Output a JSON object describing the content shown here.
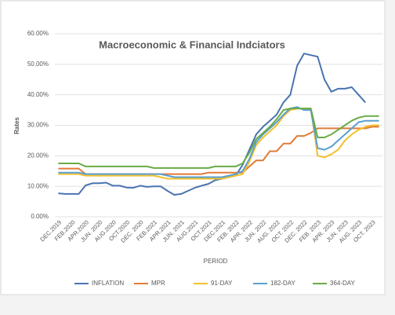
{
  "chart_data": {
    "type": "line",
    "title": "Macroeconomic & Financial Indciators",
    "y_label": "Rates",
    "x_label": "PERIOD",
    "categories": [
      "DEC.2019",
      null,
      "FEB.2020",
      null,
      "APR.2020",
      null,
      "JUN. 2020",
      null,
      "AUG.2020",
      null,
      "OCT.2020",
      null,
      "DEC. 2020",
      null,
      "FEB.2021",
      null,
      "APR.2021",
      null,
      "JUN. 2021",
      null,
      "AUG.2021",
      null,
      "OCT.2021",
      null,
      "DEC.2021",
      null,
      "FEB. 2022",
      null,
      "APR. 2022",
      null,
      "JUN. 2022",
      null,
      "AUG. 2022",
      null,
      "OCT. 2022",
      null,
      "DEC. 2022",
      null,
      "FEB. 2023",
      null,
      "APR. 2023",
      null,
      "JUN. 2023",
      null,
      "AUG. 2023",
      null,
      "OCT. 2023",
      null
    ],
    "series": [
      {
        "name": "INFLATION",
        "color": "#4a74b0",
        "values": [
          7.7,
          7.5,
          7.5,
          7.5,
          10.3,
          11,
          11,
          11.2,
          10.2,
          10.2,
          9.6,
          9.5,
          10.2,
          9.8,
          10,
          10,
          8.5,
          7.2,
          7.5,
          8.5,
          9.5,
          10.2,
          10.8,
          12,
          12.5,
          13,
          13.5,
          17,
          22,
          27,
          29.5,
          31.5,
          33.5,
          37.5,
          40,
          49.5,
          53.5,
          53,
          52.5,
          45,
          41,
          42,
          42,
          42.5,
          40,
          37.5,
          null,
          null
        ]
      },
      {
        "name": "MPR",
        "color": "#e07b39",
        "values": [
          15.8,
          15.8,
          15.8,
          15.8,
          14,
          14,
          14,
          14,
          14,
          14,
          14,
          14,
          14,
          14,
          14,
          14,
          14,
          14,
          14,
          14,
          14,
          14,
          14.5,
          14.5,
          14.5,
          14.5,
          14.5,
          14.5,
          16.5,
          18.5,
          18.5,
          21.5,
          21.5,
          24,
          24,
          26.5,
          26.5,
          27.5,
          29,
          29,
          29,
          29,
          29,
          29,
          29,
          29,
          29.5,
          29.5
        ]
      },
      {
        "name": "91-DAY",
        "color": "#f2c12e",
        "values": [
          14,
          14,
          14,
          14,
          13.5,
          13.5,
          13.5,
          13.5,
          13.5,
          13.5,
          13.5,
          13.5,
          13.5,
          13.5,
          13.5,
          13,
          12.5,
          12.5,
          12.5,
          12.5,
          12.5,
          12.5,
          12.5,
          12.5,
          12.5,
          13,
          13.5,
          14,
          18,
          23.5,
          26,
          28,
          30,
          33,
          35,
          35.5,
          35.5,
          35.5,
          20,
          19.5,
          20.5,
          22,
          25,
          27,
          28.5,
          29.5,
          30,
          30
        ]
      },
      {
        "name": "182-DAY",
        "color": "#5aa0d0",
        "values": [
          14.5,
          14.5,
          14.5,
          14.5,
          14,
          14,
          14,
          14,
          14,
          14,
          14,
          14,
          14,
          14,
          14,
          14,
          13.5,
          13,
          13,
          13,
          13,
          13,
          13,
          13,
          13,
          13.5,
          14,
          15,
          19,
          24.5,
          27,
          29,
          31,
          33.5,
          35.5,
          36,
          35,
          35,
          22.5,
          22,
          23,
          25,
          27,
          29,
          31,
          31.5,
          31.5,
          31.5
        ]
      },
      {
        "name": "364-DAY",
        "color": "#6aab45",
        "values": [
          17.5,
          17.5,
          17.5,
          17.5,
          16.5,
          16.5,
          16.5,
          16.5,
          16.5,
          16.5,
          16.5,
          16.5,
          16.5,
          16.5,
          16,
          16,
          16,
          16,
          16,
          16,
          16,
          16,
          16,
          16.5,
          16.5,
          16.5,
          16.5,
          17.5,
          21,
          25.5,
          27.5,
          29.5,
          32,
          35,
          35.5,
          35.5,
          35.5,
          35.5,
          26,
          26,
          27,
          28.5,
          30,
          31.5,
          32.5,
          33,
          33,
          33
        ]
      }
    ],
    "ylim": [
      0,
      60
    ],
    "yticks": [
      {
        "value": 0,
        "label": "0.00%"
      },
      {
        "value": 10,
        "label": "10.00%"
      },
      {
        "value": 20,
        "label": "20.00%"
      },
      {
        "value": 30,
        "label": "30.00%"
      },
      {
        "value": 40,
        "label": "40.00%"
      },
      {
        "value": 50,
        "label": "50.00%"
      },
      {
        "value": 60,
        "label": "60.00%"
      }
    ],
    "grid": true,
    "legend": "bottom"
  }
}
